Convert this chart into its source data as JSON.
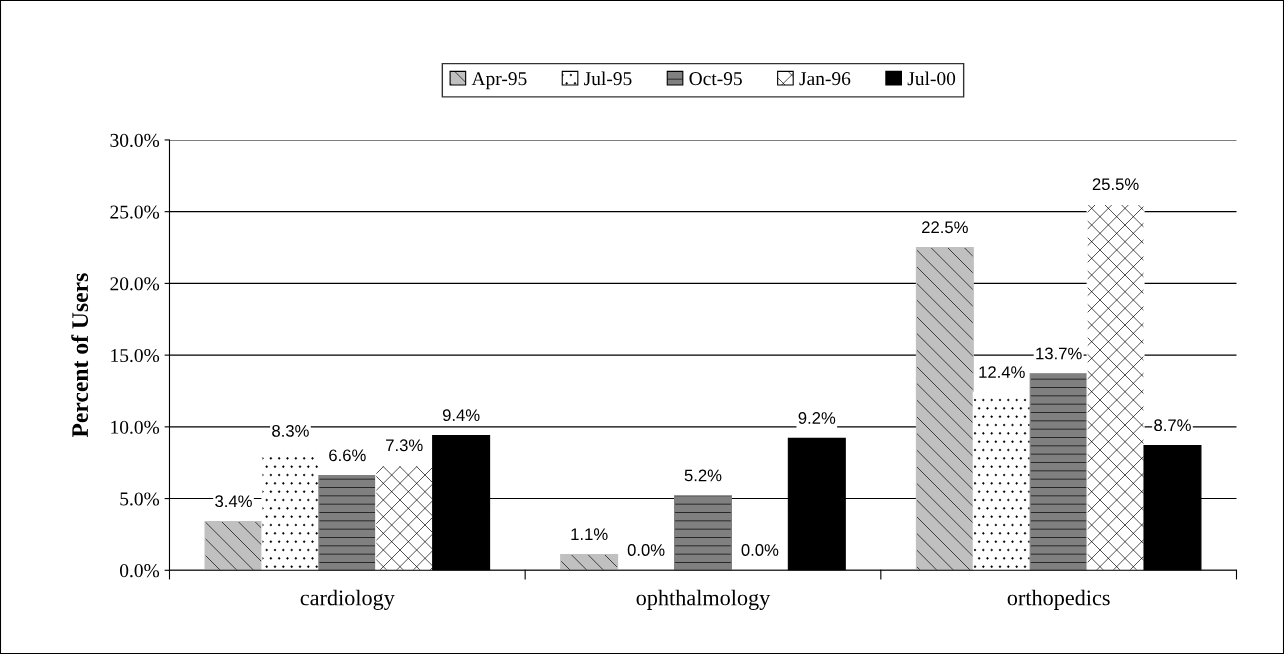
{
  "chart_data": {
    "type": "bar",
    "ylabel": "Percent of Users",
    "categories": [
      "cardiology",
      "ophthalmology",
      "orthopedics"
    ],
    "series": [
      {
        "name": "Apr-95",
        "color": "#c0c0c0",
        "values": [
          3.4,
          1.1,
          22.5
        ],
        "value_labels": [
          "3.4%",
          "1.1%",
          "22.5%"
        ]
      },
      {
        "name": "Jul-95",
        "color": "#ffffff",
        "values": [
          8.3,
          0.0,
          12.4
        ],
        "value_labels": [
          "8.3%",
          "0.0%",
          "12.4%"
        ]
      },
      {
        "name": "Oct-95",
        "color": "#808080",
        "values": [
          6.6,
          5.2,
          13.7
        ],
        "value_labels": [
          "6.6%",
          "5.2%",
          "13.7%"
        ]
      },
      {
        "name": "Jan-96",
        "color": "#ffffff",
        "values": [
          7.3,
          0.0,
          25.5
        ],
        "value_labels": [
          "7.3%",
          "0.0%",
          "25.5%"
        ]
      },
      {
        "name": "Jul-00",
        "color": "#000000",
        "values": [
          9.4,
          9.2,
          8.7
        ],
        "value_labels": [
          "9.4%",
          "9.2%",
          "8.7%"
        ]
      }
    ],
    "ylim": [
      0,
      30
    ],
    "yticks": [
      {
        "value": 0,
        "label": "0.0%"
      },
      {
        "value": 5,
        "label": "5.0%"
      },
      {
        "value": 10,
        "label": "10.0%"
      },
      {
        "value": 15,
        "label": "15.0%"
      },
      {
        "value": 20,
        "label": "20.0%"
      },
      {
        "value": 25,
        "label": "25.0%"
      },
      {
        "value": 30,
        "label": "30.0%"
      }
    ],
    "grid": "y",
    "legend": "top"
  }
}
